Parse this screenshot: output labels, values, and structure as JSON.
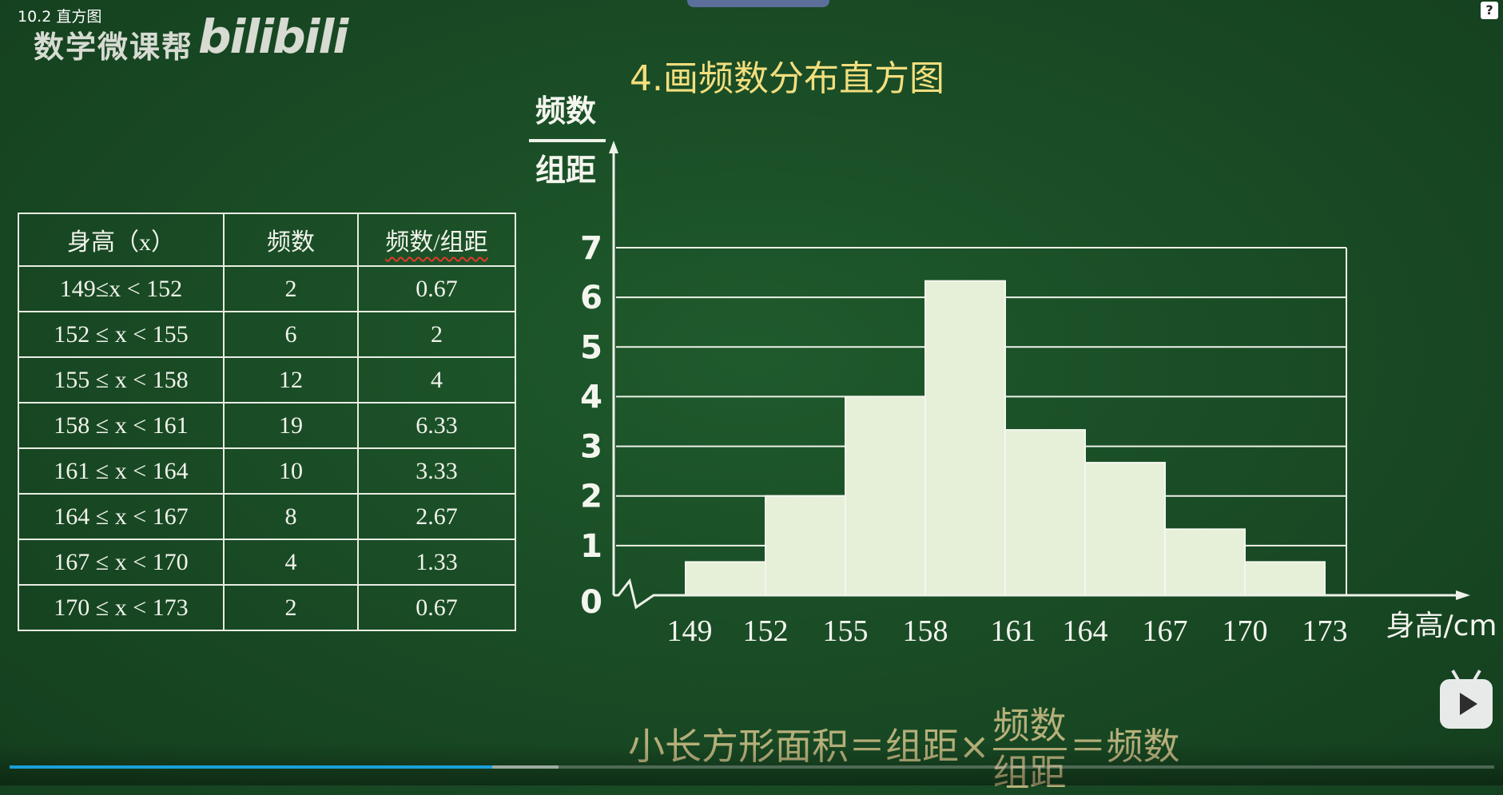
{
  "video": {
    "title": "10.2 直方图",
    "channel": "数学微课帮",
    "platform_logo": "bilibili",
    "progress_fraction": 0.325,
    "buffer_fraction": 0.37
  },
  "table": {
    "headers": [
      "身高（x）",
      "频数",
      "频数/组距"
    ],
    "rows": [
      [
        "149≤x < 152",
        "2",
        "0.67"
      ],
      [
        "152 ≤ x < 155",
        "6",
        "2"
      ],
      [
        "155 ≤ x < 158",
        "12",
        "4"
      ],
      [
        "158 ≤ x < 161",
        "19",
        "6.33"
      ],
      [
        "161 ≤ x < 164",
        "10",
        "3.33"
      ],
      [
        "164 ≤ x < 167",
        "8",
        "2.67"
      ],
      [
        "167 ≤ x < 170",
        "4",
        "1.33"
      ],
      [
        "170 ≤ x < 173",
        "2",
        "0.67"
      ]
    ]
  },
  "chart_data": {
    "type": "bar",
    "title": "4.画频数分布直方图",
    "ylabel_numerator": "频数",
    "ylabel_denominator": "组距",
    "xlabel": "身高/cm",
    "x_ticks": [
      149,
      152,
      155,
      158,
      161,
      164,
      167,
      170,
      173
    ],
    "y_ticks": [
      0,
      1,
      2,
      3,
      4,
      5,
      6,
      7
    ],
    "ylim": [
      0,
      7
    ],
    "bins": [
      [
        149,
        152
      ],
      [
        152,
        155
      ],
      [
        155,
        158
      ],
      [
        158,
        161
      ],
      [
        161,
        164
      ],
      [
        164,
        167
      ],
      [
        167,
        170
      ],
      [
        170,
        173
      ]
    ],
    "values": [
      0.67,
      2,
      4,
      6.33,
      3.33,
      2.67,
      1.33,
      0.67
    ],
    "grid": true,
    "axis_break": true,
    "bar_color": "#e6f0d8",
    "line_color": "#eef2e8"
  },
  "formula": {
    "left": "小长方形面积＝组距×",
    "numerator": "频数",
    "denominator": "组距",
    "right": "＝频数"
  }
}
